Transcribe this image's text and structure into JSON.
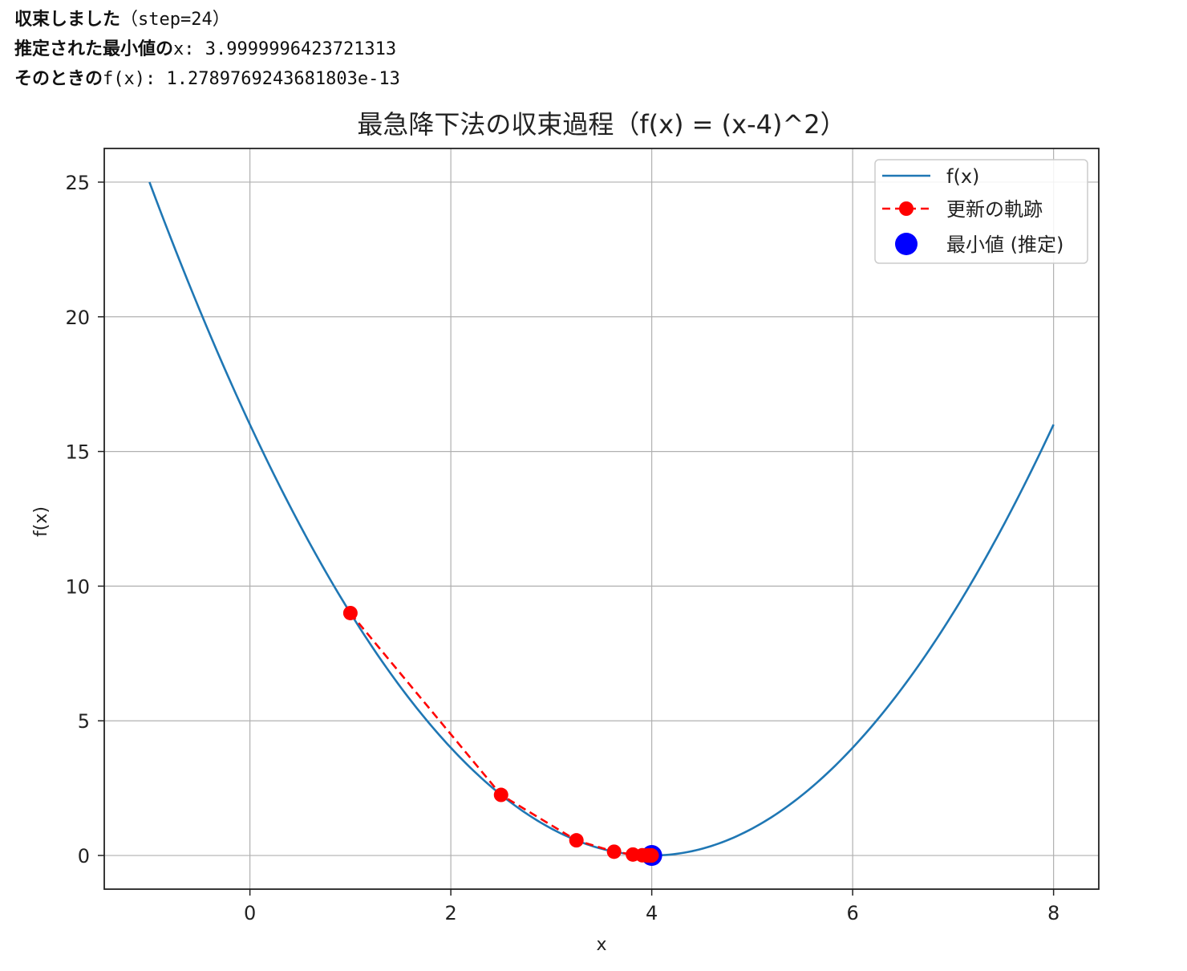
{
  "output": {
    "line1_label": "収束しました",
    "line1_value": "（step=24）",
    "line2_label": "推定された最小値の",
    "line2_value": "x: 3.9999996423721313",
    "line3_label": "そのときの",
    "line3_value": "f(x): 1.2789769243681803e-13"
  },
  "chart_data": {
    "type": "line",
    "title": "最急降下法の収束過程（f(x) = (x-4)^2）",
    "xlabel": "x",
    "ylabel": "f(x)",
    "xlim": [
      -1.45,
      8.45
    ],
    "ylim": [
      -1.25,
      26.25
    ],
    "xticks": [
      0,
      2,
      4,
      6,
      8
    ],
    "xtick_labels": [
      "0",
      "2",
      "4",
      "6",
      "8"
    ],
    "yticks": [
      0,
      5,
      10,
      15,
      20,
      25
    ],
    "ytick_labels": [
      "0",
      "5",
      "10",
      "15",
      "20",
      "25"
    ],
    "grid": true,
    "legend_position": "top-right",
    "series": [
      {
        "name": "f(x)",
        "style": "solid",
        "color": "#1f77b4",
        "function": "(x-4)^2",
        "x_range": [
          -1,
          8
        ]
      },
      {
        "name": "更新の軌跡",
        "style": "dashed-markers",
        "color": "#ff0000",
        "x": [
          1.0,
          2.5,
          3.25,
          3.625,
          3.8125,
          3.90625,
          3.953125,
          3.9765625,
          3.98828125,
          3.994140625,
          3.9970703125,
          3.99853515625
        ],
        "y": [
          9.0,
          2.25,
          0.5625,
          0.140625,
          0.03515625,
          0.0087890625,
          0.002197265625,
          0.00054931640625,
          0.0001373291,
          3.43323e-05,
          8.5831e-06,
          2.1458e-06
        ]
      },
      {
        "name": "最小値 (推定)",
        "style": "marker",
        "color": "#0000ff",
        "x": [
          3.9999996423721313
        ],
        "y": [
          1.2789769243681803e-13
        ]
      }
    ]
  }
}
